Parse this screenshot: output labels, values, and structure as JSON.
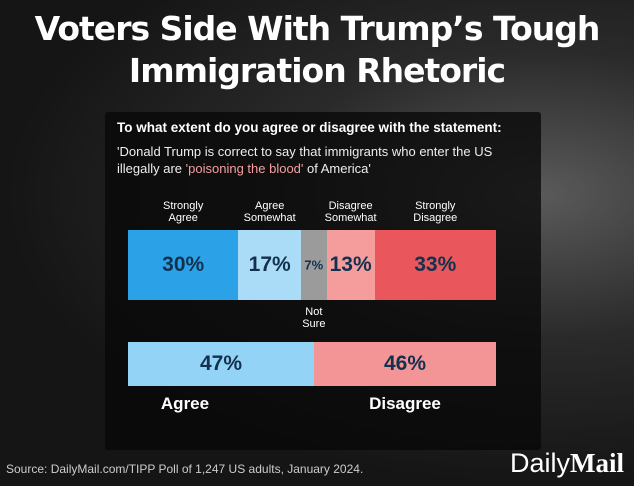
{
  "header": {
    "title": "Voters Side With Trump’s Tough Immigration Rhetoric"
  },
  "question": "To what extent do you agree or disagree with the statement:",
  "quote": [
    "'Donald Trump is correct to say that immigrants who enter the US illegally are ",
    "'poisoning the blood'",
    " of America'"
  ],
  "chart_data": [
    {
      "type": "stacked-bar",
      "series": [
        {
          "name": "Strongly Agree",
          "color": "#2ba2e8",
          "values": [
            30
          ],
          "value_labels": [
            "30%"
          ]
        },
        {
          "name": "Agree Somewhat",
          "color": "#aadcf7",
          "values": [
            17
          ],
          "value_labels": [
            "17%"
          ]
        },
        {
          "name": "Not Sure",
          "color": "#9b9b9b",
          "values": [
            7
          ],
          "value_labels": [
            "7%"
          ]
        },
        {
          "name": "Disagree Somewhat",
          "color": "#f59c9c",
          "values": [
            13
          ],
          "value_labels": [
            "13%"
          ]
        },
        {
          "name": "Strongly Disagree",
          "color": "#e9575c",
          "values": [
            33
          ],
          "value_labels": [
            "33%"
          ]
        }
      ]
    },
    {
      "type": "stacked-bar",
      "series": [
        {
          "name": "Agree",
          "color": "#93d3f6",
          "values": [
            47
          ],
          "value_labels": [
            "47%"
          ]
        },
        {
          "name": "Disagree",
          "color": "#f39597",
          "values": [
            46
          ],
          "value_labels": [
            "46%"
          ]
        }
      ]
    }
  ],
  "source": "Source: DailyMail.com/TIPP Poll of 1,247 US adults, January 2024.",
  "brand": [
    "Daily",
    "Mail"
  ]
}
